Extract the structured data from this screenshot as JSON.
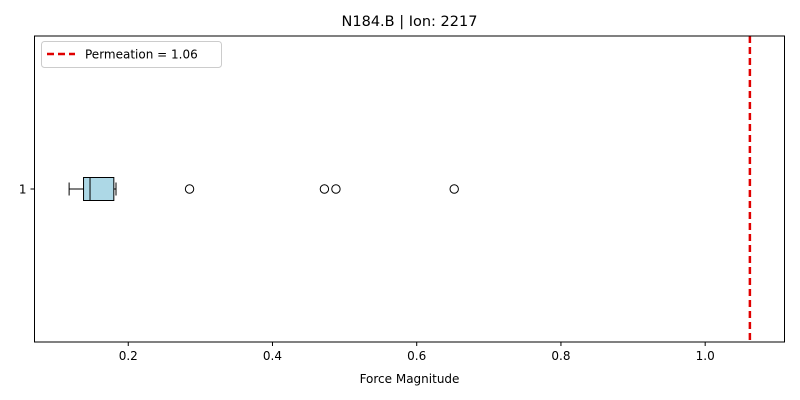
{
  "chart_data": {
    "type": "boxplot",
    "orientation": "horizontal",
    "title": "N184.B | Ion: 2217",
    "xlabel": "Force Magnitude",
    "ylabel": "",
    "xlim": [
      0.07,
      1.11
    ],
    "x_ticks": [
      0.2,
      0.4,
      0.6,
      0.8,
      1.0
    ],
    "x_tick_labels": [
      "0.2",
      "0.4",
      "0.6",
      "0.8",
      "1.0"
    ],
    "y_tick_labels": [
      "1"
    ],
    "grid": false,
    "box": {
      "whisker_low": 0.118,
      "q1": 0.138,
      "median": 0.147,
      "q3": 0.18,
      "whisker_high": 0.183,
      "outliers": [
        0.285,
        0.472,
        0.488,
        0.652
      ],
      "fill_color": "#add8e6"
    },
    "reference_line": {
      "label": "Permeation = 1.06",
      "value": 1.062,
      "color": "#e00000",
      "style": "dashed"
    },
    "legend_position": "upper-left"
  }
}
